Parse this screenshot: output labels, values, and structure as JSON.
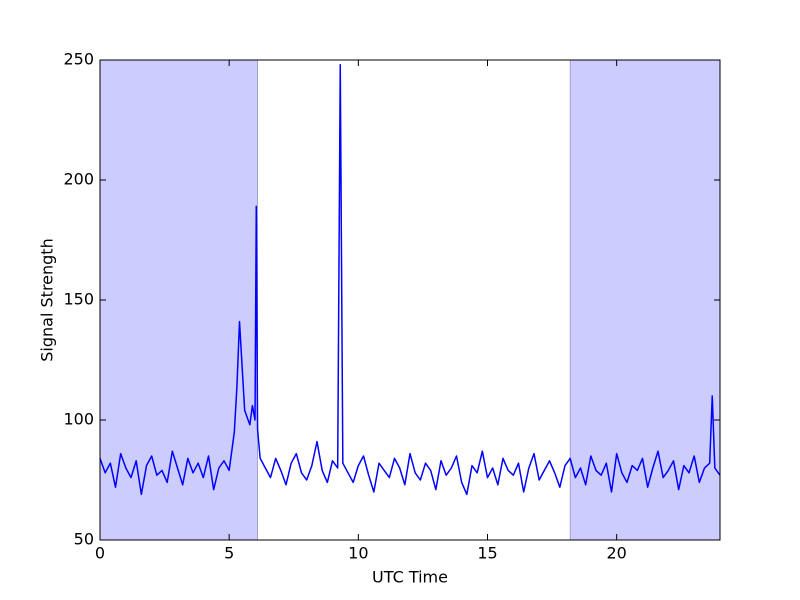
{
  "chart_data": {
    "type": "line",
    "xlabel": "UTC Time",
    "ylabel": "Signal Strength",
    "xlim": [
      0,
      24
    ],
    "ylim": [
      50,
      250
    ],
    "xticks": [
      0,
      5,
      10,
      15,
      20
    ],
    "yticks": [
      50,
      100,
      150,
      200,
      250
    ],
    "grid": false,
    "shaded_spans": [
      [
        0,
        6.1
      ],
      [
        18.2,
        24
      ]
    ],
    "shade_color": "#ccccff",
    "x": [
      0,
      0.2,
      0.4,
      0.6,
      0.8,
      1,
      1.2,
      1.4,
      1.6,
      1.8,
      2,
      2.2,
      2.4,
      2.6,
      2.8,
      3,
      3.2,
      3.4,
      3.6,
      3.8,
      4,
      4.2,
      4.4,
      4.6,
      4.8,
      5,
      5.2,
      5.3,
      5.4,
      5.6,
      5.8,
      5.9,
      6,
      6.05,
      6.1,
      6.2,
      6.4,
      6.6,
      6.8,
      7,
      7.2,
      7.4,
      7.6,
      7.8,
      8,
      8.2,
      8.4,
      8.6,
      8.8,
      9,
      9.2,
      9.3,
      9.4,
      9.6,
      9.8,
      10,
      10.2,
      10.4,
      10.6,
      10.8,
      11,
      11.2,
      11.4,
      11.6,
      11.8,
      12,
      12.2,
      12.4,
      12.6,
      12.8,
      13,
      13.2,
      13.4,
      13.6,
      13.8,
      14,
      14.2,
      14.4,
      14.6,
      14.8,
      15,
      15.2,
      15.4,
      15.6,
      15.8,
      16,
      16.2,
      16.4,
      16.6,
      16.8,
      17,
      17.2,
      17.4,
      17.6,
      17.8,
      18,
      18.2,
      18.4,
      18.6,
      18.8,
      19,
      19.2,
      19.4,
      19.6,
      19.8,
      20,
      20.2,
      20.4,
      20.6,
      20.8,
      21,
      21.2,
      21.4,
      21.6,
      21.8,
      22,
      22.2,
      22.4,
      22.6,
      22.8,
      23,
      23.2,
      23.4,
      23.6,
      23.7,
      23.8,
      24
    ],
    "series": [
      {
        "color": "#0000ff",
        "values": [
          84,
          78,
          82,
          72,
          86,
          80,
          76,
          83,
          69,
          81,
          85,
          77,
          79,
          74,
          87,
          80,
          73,
          84,
          78,
          82,
          76,
          85,
          71,
          80,
          83,
          79,
          95,
          114,
          141,
          104,
          98,
          106,
          100,
          189,
          96,
          84,
          80,
          76,
          84,
          79,
          73,
          82,
          86,
          78,
          75,
          81,
          91,
          79,
          74,
          83,
          80,
          248,
          82,
          78,
          74,
          81,
          85,
          77,
          70,
          82,
          79,
          76,
          84,
          80,
          73,
          86,
          78,
          75,
          82,
          79,
          71,
          83,
          77,
          80,
          85,
          74,
          69,
          81,
          78,
          87,
          76,
          80,
          73,
          84,
          79,
          77,
          82,
          70,
          80,
          86,
          75,
          79,
          83,
          78,
          72,
          81,
          84,
          76,
          80,
          73,
          85,
          79,
          77,
          82,
          70,
          86,
          78,
          74,
          81,
          79,
          84,
          72,
          80,
          87,
          76,
          79,
          83,
          71,
          81,
          78,
          85,
          74,
          80,
          82,
          110,
          80,
          77
        ]
      }
    ]
  }
}
